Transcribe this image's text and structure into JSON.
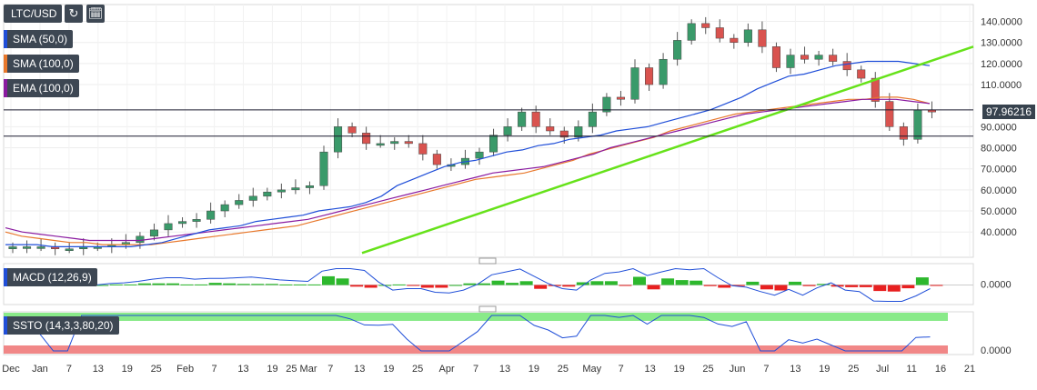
{
  "symbol": "LTC/USD",
  "icons": {
    "refresh": "refresh-icon",
    "calendar": "calendar-icon"
  },
  "indicators": [
    {
      "label": "SMA (50,0)",
      "color": "#1f4ed8"
    },
    {
      "label": "SMA (100,0)",
      "color": "#e8782c"
    },
    {
      "label": "EMA (100,0)",
      "color": "#8a1aa0"
    }
  ],
  "current_price": "97.96216",
  "macd_label": "MACD (12,26,9)",
  "ssto_label": "SSTO (14,3,3,80,20)",
  "colors": {
    "up": "#3a9a6a",
    "down": "#d9534f",
    "trendline": "#66e21a",
    "hist_up": "#2db82d",
    "hist_down": "#e82020"
  },
  "chart_data": {
    "type": "candlestick",
    "price_axis": {
      "ticks": [
        "140.0000",
        "130.0000",
        "120.0000",
        "110.0000",
        "90.0000",
        "80.0000",
        "70.0000",
        "60.0000",
        "50.0000",
        "40.0000"
      ],
      "range": [
        28,
        148
      ]
    },
    "macd_axis": {
      "ticks": [
        "0.0000"
      ]
    },
    "ssto_axis": {
      "ticks": [
        "0.0000"
      ]
    },
    "x_ticks": [
      "Dec",
      "Jan",
      "7",
      "13",
      "19",
      "25",
      "Feb",
      "7",
      "13",
      "19",
      "25 Mar",
      "7",
      "13",
      "19",
      "25",
      "Apr",
      "7",
      "13",
      "19",
      "25",
      "May",
      "7",
      "13",
      "19",
      "25",
      "Jun",
      "7",
      "13",
      "19",
      "25",
      "Jul",
      "11",
      "16",
      "21"
    ],
    "closes": [
      33,
      33,
      33,
      32,
      32,
      33,
      33,
      34,
      35,
      38,
      41,
      44,
      45,
      46,
      50,
      53,
      55,
      57,
      59,
      60,
      61,
      62,
      78,
      90,
      87,
      82,
      82,
      83,
      82,
      77,
      72,
      72,
      75,
      78,
      86,
      90,
      97,
      90,
      88,
      85,
      90,
      97,
      104,
      103,
      118,
      110,
      122,
      131,
      139,
      137,
      132,
      130,
      136,
      128,
      118,
      124,
      122,
      124,
      121,
      117,
      113,
      102,
      90,
      84,
      98,
      97
    ],
    "sma50": [
      34,
      34,
      34,
      33,
      33,
      33,
      33,
      33,
      33,
      34,
      35,
      37,
      39,
      41,
      42,
      43,
      45,
      46,
      47,
      48,
      50,
      51,
      52,
      54,
      57,
      62,
      65,
      68,
      71,
      73,
      74,
      76,
      78,
      79,
      81,
      82,
      84,
      85,
      86,
      88,
      89,
      90,
      92,
      94,
      96,
      98,
      101,
      104,
      108,
      111,
      114,
      115,
      117,
      119,
      120,
      121,
      121,
      121,
      120,
      119
    ],
    "sma100": [
      40,
      38,
      37,
      36,
      35,
      35,
      34,
      34,
      34,
      34,
      35,
      36,
      37,
      38,
      39,
      40,
      41,
      42,
      43,
      45,
      47,
      49,
      51,
      53,
      55,
      57,
      59,
      61,
      63,
      65,
      66,
      67,
      68,
      70,
      72,
      74,
      77,
      79,
      81,
      83,
      85,
      88,
      90,
      92,
      94,
      96,
      97,
      98,
      99,
      100,
      101,
      102,
      103,
      103,
      104,
      104,
      103,
      101
    ],
    "ema100": [
      42,
      40,
      39,
      38,
      37,
      36,
      36,
      36,
      36,
      37,
      38,
      39,
      40,
      41,
      42,
      43,
      44,
      45,
      46,
      48,
      50,
      52,
      54,
      56,
      58,
      60,
      62,
      64,
      66,
      68,
      69,
      70,
      71,
      73,
      75,
      77,
      80,
      82,
      84,
      86,
      88,
      90,
      92,
      94,
      96,
      97,
      98,
      99,
      100,
      101,
      102,
      103,
      103,
      103,
      102,
      101
    ],
    "support_levels": [
      97.96216,
      85.5
    ],
    "trendline": {
      "from": [
        0,
        30
      ],
      "to": [
        1,
        128
      ]
    }
  }
}
